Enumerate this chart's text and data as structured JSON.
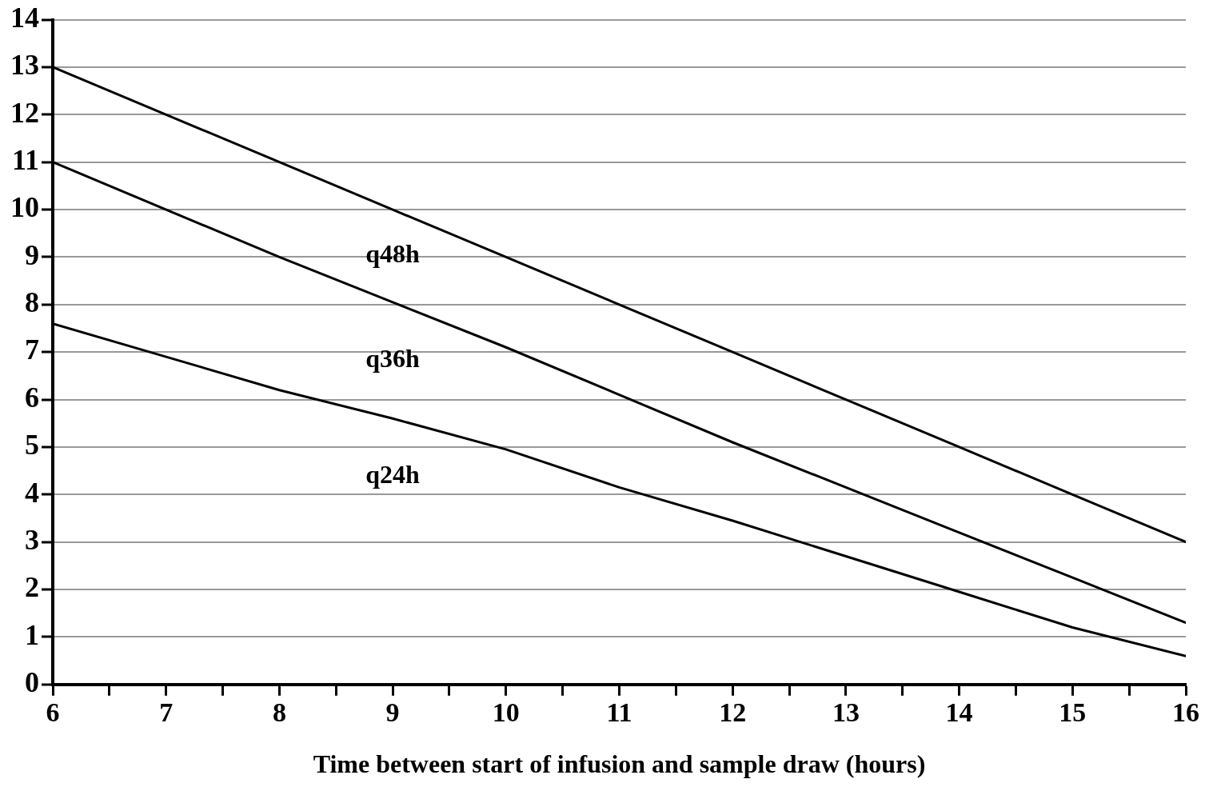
{
  "chart_data": {
    "type": "line",
    "xlabel": "Time between start of infusion and sample draw (hours)",
    "x": [
      6,
      7,
      8,
      9,
      10,
      11,
      12,
      13,
      14,
      15,
      16
    ],
    "series": [
      {
        "name": "q48h",
        "color": "#000000",
        "values": [
          13,
          12,
          11,
          10,
          9,
          8,
          7,
          6,
          5,
          4,
          3
        ]
      },
      {
        "name": "q36h",
        "color": "#000000",
        "values": [
          11,
          10,
          9,
          8.05,
          7.1,
          6.1,
          5.1,
          4.15,
          3.2,
          2.25,
          1.3
        ]
      },
      {
        "name": "q24h",
        "color": "#000000",
        "values": [
          7.6,
          6.9,
          6.2,
          5.6,
          4.95,
          4.15,
          3.45,
          2.7,
          1.95,
          1.2,
          0.6
        ]
      }
    ],
    "xlim": [
      6,
      16
    ],
    "ylim": [
      0,
      14
    ],
    "xticks": [
      6,
      {
        "value": 6.5,
        "label": null
      },
      7,
      {
        "value": 7.5,
        "label": null
      },
      8,
      {
        "value": 8.5,
        "label": null
      },
      9,
      {
        "value": 9.5,
        "label": null
      },
      10,
      {
        "value": 10.5,
        "label": null
      },
      11,
      {
        "value": 11.5,
        "label": null
      },
      12,
      {
        "value": 12.5,
        "label": null
      },
      13,
      {
        "value": 13.5,
        "label": null
      },
      14,
      {
        "value": 14.5,
        "label": null
      },
      15,
      {
        "value": 15.5,
        "label": null
      },
      16
    ],
    "yticks": [
      0,
      1,
      2,
      3,
      4,
      5,
      6,
      7,
      8,
      9,
      10,
      11,
      12,
      13,
      14
    ],
    "grid": "y",
    "legend": false,
    "marker": "none",
    "line_style": "solid"
  }
}
